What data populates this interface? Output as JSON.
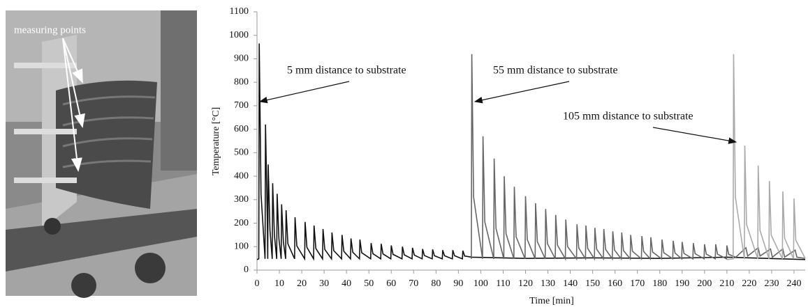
{
  "photo": {
    "label": "measuring points"
  },
  "chart_data": {
    "type": "line",
    "xlabel": "Time [min]",
    "ylabel": "Temperature [°C]",
    "xlim": [
      0,
      245
    ],
    "xticks": [
      0,
      10,
      20,
      30,
      40,
      50,
      60,
      70,
      80,
      90,
      100,
      110,
      120,
      130,
      140,
      150,
      160,
      170,
      180,
      190,
      200,
      210,
      220,
      230,
      240
    ],
    "ylim": [
      0,
      1100
    ],
    "yticks": [
      0,
      100,
      200,
      300,
      400,
      500,
      600,
      700,
      800,
      900,
      1000,
      1100
    ],
    "grid": false,
    "series": [
      {
        "name": "5 mm distance to substrate",
        "color": "#111111",
        "x": [
          0,
          0.8,
          1,
          1.8,
          3.6,
          3.8,
          4.6,
          4.8,
          5,
          5.8,
          6.8,
          7,
          7.8,
          8.8,
          9,
          9.8,
          10.8,
          11,
          11.8,
          12.8,
          13,
          13.8,
          16.8,
          17,
          17.8,
          21.3,
          21.5,
          22.3,
          25.3,
          25.5,
          26.3,
          29.3,
          29.5,
          30.3,
          33.3,
          33.5,
          34.3,
          37.8,
          38,
          38.8,
          41.8,
          42,
          42.8,
          45.8,
          46,
          46.8,
          50.8,
          51,
          51.8,
          55.3,
          55.5,
          56.3,
          59.8,
          60,
          60.8,
          64.8,
          65,
          65.8,
          69.3,
          69.5,
          70.3,
          73.8,
          74,
          74.8,
          78.3,
          78.5,
          79.3,
          82.8,
          83,
          83.8,
          87.3,
          87.5,
          88.3,
          91.8,
          92,
          92.8,
          96,
          120,
          150,
          180,
          210,
          245
        ],
        "values": [
          45,
          48,
          965,
          325,
          48,
          620,
          221,
          48,
          450,
          170,
          48,
          370,
          146,
          48,
          325,
          133,
          48,
          280,
          119,
          48,
          255,
          112,
          48,
          225,
          103,
          48,
          205,
          97,
          48,
          190,
          92,
          48,
          175,
          88,
          48,
          160,
          83,
          48,
          150,
          80,
          48,
          135,
          76,
          48,
          130,
          74,
          48,
          115,
          70,
          48,
          112,
          69,
          48,
          105,
          67,
          48,
          100,
          65,
          48,
          95,
          64,
          48,
          90,
          62,
          48,
          88,
          61,
          48,
          85,
          61,
          48,
          85,
          61,
          48,
          83,
          60,
          55,
          50,
          52,
          50,
          55,
          45
        ]
      },
      {
        "name": "55 mm distance to substrate",
        "color": "#666666",
        "x": [
          95.8,
          96,
          96.8,
          100.8,
          101,
          101.8,
          105.8,
          106,
          106.8,
          110.3,
          110.5,
          111.3,
          114.8,
          115,
          115.8,
          119.8,
          120,
          120.8,
          124.3,
          124.5,
          125.3,
          128.8,
          129,
          129.8,
          133.3,
          133.5,
          134.3,
          137.8,
          138,
          138.8,
          142.8,
          143,
          143.8,
          146.8,
          147,
          147.8,
          150.8,
          151,
          151.8,
          154.8,
          155,
          155.8,
          158.8,
          159,
          159.8,
          162.8,
          163,
          163.8,
          166.8,
          167,
          167.8,
          171.8,
          172,
          172.8,
          175.8,
          176,
          176.8,
          180.8,
          181,
          181.8,
          185.8,
          186,
          186.8,
          189.8,
          190,
          190.8,
          194.8,
          195,
          195.8,
          199.8,
          200,
          200.8,
          204.8,
          205,
          205.8,
          209.8,
          210,
          210.8,
          214,
          218.5,
          219.3,
          224,
          224.8,
          229.5,
          230.3,
          235,
          235.8,
          240.5,
          241.3,
          245
        ],
        "values": [
          48,
          920,
          311,
          48,
          570,
          206,
          48,
          475,
          178,
          48,
          400,
          155,
          48,
          355,
          142,
          48,
          315,
          130,
          48,
          285,
          121,
          48,
          260,
          113,
          48,
          235,
          106,
          48,
          215,
          100,
          48,
          195,
          94,
          48,
          190,
          92,
          48,
          180,
          89,
          48,
          175,
          88,
          48,
          165,
          85,
          48,
          160,
          83,
          48,
          150,
          80,
          48,
          145,
          79,
          48,
          140,
          77,
          48,
          130,
          74,
          48,
          125,
          73,
          48,
          120,
          71,
          48,
          115,
          70,
          48,
          110,
          68,
          48,
          110,
          68,
          48,
          105,
          67,
          55,
          95,
          60,
          95,
          60,
          90,
          55,
          90,
          55,
          85,
          55,
          50
        ]
      },
      {
        "name": "105 mm distance to substrate",
        "color": "#aaaaaa",
        "x": [
          210,
          212.8,
          213,
          213.8,
          217.8,
          218,
          218.8,
          223.8,
          224,
          224.8,
          228.8,
          229,
          229.8,
          234.8,
          235,
          235.8,
          239.8,
          240,
          240.8,
          245
        ],
        "values": [
          45,
          48,
          920,
          311,
          48,
          530,
          194,
          48,
          445,
          169,
          48,
          380,
          149,
          48,
          335,
          136,
          48,
          305,
          127,
          50
        ]
      }
    ]
  }
}
